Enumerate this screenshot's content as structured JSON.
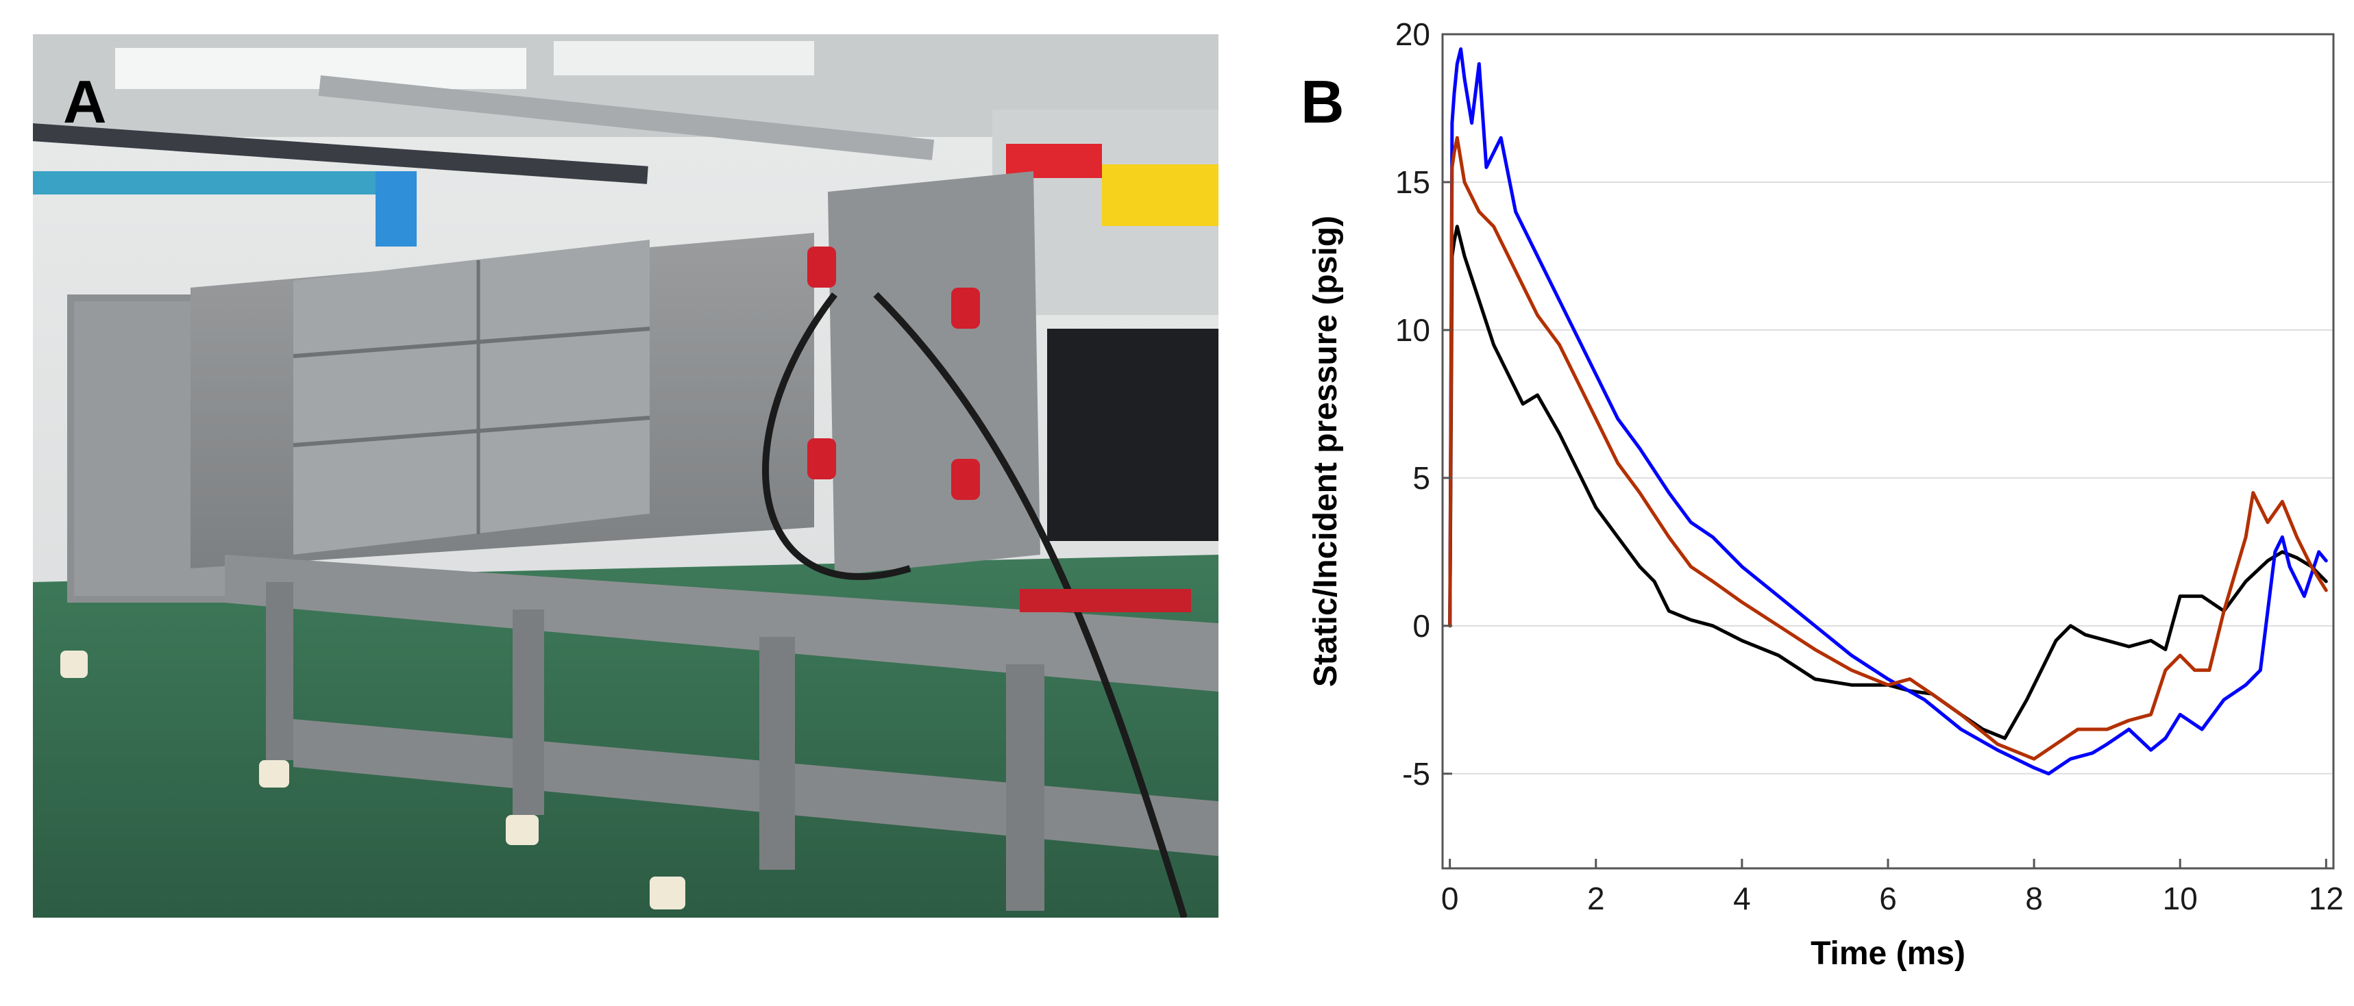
{
  "panels": {
    "a_label": "A",
    "b_label": "B"
  },
  "photo": {
    "subject": "shock-tube-apparatus-photo"
  },
  "chart_data": {
    "type": "line",
    "xlabel": "Time (ms)",
    "ylabel": "Static/Incident pressure (psig)",
    "xlim": [
      -0.1,
      12.1
    ],
    "ylim": [
      -8.2,
      20
    ],
    "xticks": [
      0,
      2,
      4,
      6,
      8,
      10,
      12
    ],
    "yticks": [
      -5,
      0,
      5,
      10,
      15,
      20
    ],
    "ytick_labels": [
      "-5",
      "0",
      "5",
      "10",
      "15",
      "20"
    ],
    "grid": "horizontal",
    "legend": "none",
    "series": [
      {
        "color": "#000000",
        "x": [
          0,
          0.03,
          0.06,
          0.1,
          0.2,
          0.4,
          0.6,
          0.8,
          1.0,
          1.2,
          1.5,
          1.8,
          2.0,
          2.3,
          2.6,
          2.8,
          3.0,
          3.3,
          3.6,
          4.0,
          4.5,
          5.0,
          5.5,
          6.0,
          6.3,
          6.6,
          7.0,
          7.3,
          7.6,
          7.9,
          8.1,
          8.3,
          8.5,
          8.7,
          9.0,
          9.3,
          9.6,
          9.8,
          10.0,
          10.3,
          10.6,
          10.9,
          11.2,
          11.4,
          11.6,
          11.8,
          12.0
        ],
        "y": [
          0,
          12.5,
          13.0,
          13.5,
          12.5,
          11.0,
          9.5,
          8.5,
          7.5,
          7.8,
          6.5,
          5.0,
          4.0,
          3.0,
          2.0,
          1.5,
          0.5,
          0.2,
          0.0,
          -0.5,
          -1.0,
          -1.8,
          -2.0,
          -2.0,
          -2.2,
          -2.3,
          -3.0,
          -3.5,
          -3.8,
          -2.5,
          -1.5,
          -0.5,
          0.0,
          -0.3,
          -0.5,
          -0.7,
          -0.5,
          -0.8,
          1.0,
          1.0,
          0.5,
          1.5,
          2.2,
          2.5,
          2.3,
          2.0,
          1.5
        ]
      },
      {
        "color": "#0000ff",
        "x": [
          0,
          0.03,
          0.06,
          0.1,
          0.15,
          0.2,
          0.3,
          0.4,
          0.5,
          0.7,
          0.9,
          1.2,
          1.5,
          1.8,
          2.0,
          2.3,
          2.6,
          3.0,
          3.3,
          3.6,
          4.0,
          4.5,
          5.0,
          5.5,
          6.0,
          6.5,
          7.0,
          7.5,
          8.0,
          8.2,
          8.5,
          8.8,
          9.0,
          9.3,
          9.6,
          9.8,
          10.0,
          10.3,
          10.6,
          10.9,
          11.1,
          11.3,
          11.4,
          11.5,
          11.7,
          11.9,
          12.0
        ],
        "y": [
          0,
          17.0,
          18.0,
          19.0,
          19.5,
          18.5,
          17.0,
          19.0,
          15.5,
          16.5,
          14.0,
          12.5,
          11.0,
          9.5,
          8.5,
          7.0,
          6.0,
          4.5,
          3.5,
          3.0,
          2.0,
          1.0,
          0.0,
          -1.0,
          -1.8,
          -2.5,
          -3.5,
          -4.2,
          -4.8,
          -5.0,
          -4.5,
          -4.3,
          -4.0,
          -3.5,
          -4.2,
          -3.8,
          -3.0,
          -3.5,
          -2.5,
          -2.0,
          -1.5,
          2.5,
          3.0,
          2.0,
          1.0,
          2.5,
          2.2
        ]
      },
      {
        "color": "#b33000",
        "x": [
          0,
          0.03,
          0.06,
          0.1,
          0.2,
          0.4,
          0.6,
          0.8,
          1.0,
          1.2,
          1.5,
          1.8,
          2.0,
          2.3,
          2.6,
          3.0,
          3.3,
          3.6,
          4.0,
          4.5,
          5.0,
          5.5,
          6.0,
          6.3,
          6.6,
          7.0,
          7.5,
          8.0,
          8.3,
          8.6,
          9.0,
          9.3,
          9.6,
          9.8,
          10.0,
          10.2,
          10.4,
          10.6,
          10.9,
          11.0,
          11.2,
          11.4,
          11.6,
          11.8,
          12.0
        ],
        "y": [
          0,
          15.5,
          16.0,
          16.5,
          15.0,
          14.0,
          13.5,
          12.5,
          11.5,
          10.5,
          9.5,
          8.0,
          7.0,
          5.5,
          4.5,
          3.0,
          2.0,
          1.5,
          0.8,
          0.0,
          -0.8,
          -1.5,
          -2.0,
          -1.8,
          -2.3,
          -3.0,
          -4.0,
          -4.5,
          -4.0,
          -3.5,
          -3.5,
          -3.2,
          -3.0,
          -1.5,
          -1.0,
          -1.5,
          -1.5,
          0.5,
          3.0,
          4.5,
          3.5,
          4.2,
          3.0,
          2.0,
          1.2
        ]
      }
    ]
  }
}
